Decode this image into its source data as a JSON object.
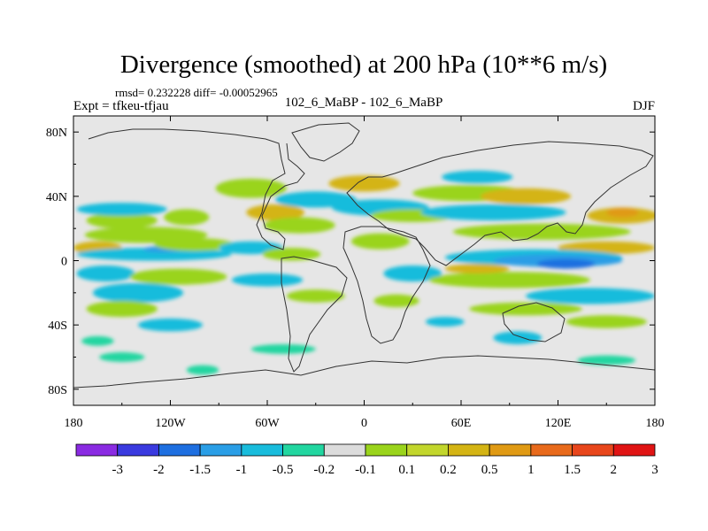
{
  "chart_data": {
    "type": "heatmap",
    "title": "Divergence (smoothed) at 200 hPa (10**6 m/s)",
    "stats": "rmsd= 0.232228 diff= -0.00052965",
    "experiment": "Expt = tfkeu-tfjau",
    "comparison": "102_6_MaBP - 102_6_MaBP",
    "season": "DJF",
    "x_ticks": [
      {
        "value": -180,
        "label": "180"
      },
      {
        "value": -120,
        "label": "120W"
      },
      {
        "value": -60,
        "label": "60W"
      },
      {
        "value": 0,
        "label": "0"
      },
      {
        "value": 60,
        "label": "60E"
      },
      {
        "value": 120,
        "label": "120E"
      },
      {
        "value": 180,
        "label": "180"
      }
    ],
    "y_ticks": [
      {
        "value": 80,
        "label": "80N"
      },
      {
        "value": 40,
        "label": "40N"
      },
      {
        "value": 0,
        "label": "0"
      },
      {
        "value": -40,
        "label": "40S"
      },
      {
        "value": -80,
        "label": "80S"
      }
    ],
    "xlim": [
      -180,
      180
    ],
    "ylim": [
      -90,
      90
    ],
    "colorbar": {
      "levels": [
        "-3",
        "-2",
        "-1.5",
        "-1",
        "-0.5",
        "-0.2",
        "-0.1",
        "0.1",
        "0.2",
        "0.5",
        "1",
        "1.5",
        "2",
        "3"
      ],
      "colors": [
        "#8a2be2",
        "#3a3adf",
        "#1e6fe0",
        "#2a9ee6",
        "#19bcdc",
        "#22d6a0",
        "#dcdcdc",
        "#9ad41c",
        "#c2d62c",
        "#d4b414",
        "#e09a14",
        "#e86a1c",
        "#e8461c",
        "#e01414"
      ]
    },
    "regions": [
      {
        "lon": -150,
        "lat": 25,
        "rx": 22,
        "ry": 5,
        "c": "#9ad41c"
      },
      {
        "lon": -110,
        "lat": 27,
        "rx": 14,
        "ry": 5,
        "c": "#9ad41c"
      },
      {
        "lon": -150,
        "lat": 32,
        "rx": 28,
        "ry": 4,
        "c": "#19bcdc"
      },
      {
        "lon": -135,
        "lat": 16,
        "rx": 38,
        "ry": 5,
        "c": "#9ad41c"
      },
      {
        "lon": -165,
        "lat": 8,
        "rx": 15,
        "ry": 4,
        "c": "#d4b414"
      },
      {
        "lon": -130,
        "lat": 4,
        "rx": 48,
        "ry": 4,
        "c": "#19bcdc"
      },
      {
        "lon": -125,
        "lat": 7,
        "rx": 12,
        "ry": 2,
        "c": "#2a9ee6"
      },
      {
        "lon": -105,
        "lat": 10,
        "rx": 25,
        "ry": 4,
        "c": "#9ad41c"
      },
      {
        "lon": -160,
        "lat": -8,
        "rx": 18,
        "ry": 5,
        "c": "#19bcdc"
      },
      {
        "lon": -115,
        "lat": -10,
        "rx": 30,
        "ry": 5,
        "c": "#9ad41c"
      },
      {
        "lon": -140,
        "lat": -20,
        "rx": 28,
        "ry": 6,
        "c": "#19bcdc"
      },
      {
        "lon": -150,
        "lat": -30,
        "rx": 22,
        "ry": 5,
        "c": "#9ad41c"
      },
      {
        "lon": -120,
        "lat": -40,
        "rx": 20,
        "ry": 4,
        "c": "#19bcdc"
      },
      {
        "lon": -165,
        "lat": -50,
        "rx": 10,
        "ry": 3,
        "c": "#22d6a0"
      },
      {
        "lon": -150,
        "lat": -60,
        "rx": 14,
        "ry": 3,
        "c": "#22d6a0"
      },
      {
        "lon": -100,
        "lat": -68,
        "rx": 10,
        "ry": 3,
        "c": "#22d6a0"
      },
      {
        "lon": -70,
        "lat": 45,
        "rx": 22,
        "ry": 6,
        "c": "#9ad41c"
      },
      {
        "lon": -55,
        "lat": 30,
        "rx": 18,
        "ry": 5,
        "c": "#d4b414"
      },
      {
        "lon": -30,
        "lat": 38,
        "rx": 25,
        "ry": 5,
        "c": "#19bcdc"
      },
      {
        "lon": -40,
        "lat": 22,
        "rx": 22,
        "ry": 5,
        "c": "#9ad41c"
      },
      {
        "lon": -70,
        "lat": 8,
        "rx": 20,
        "ry": 4,
        "c": "#19bcdc"
      },
      {
        "lon": -45,
        "lat": 4,
        "rx": 18,
        "ry": 4,
        "c": "#9ad41c"
      },
      {
        "lon": -60,
        "lat": -12,
        "rx": 22,
        "ry": 4,
        "c": "#19bcdc"
      },
      {
        "lon": -30,
        "lat": -22,
        "rx": 18,
        "ry": 4,
        "c": "#9ad41c"
      },
      {
        "lon": -50,
        "lat": -55,
        "rx": 20,
        "ry": 3,
        "c": "#22d6a0"
      },
      {
        "lon": 0,
        "lat": 48,
        "rx": 22,
        "ry": 5,
        "c": "#d4b414"
      },
      {
        "lon": 10,
        "lat": 33,
        "rx": 30,
        "ry": 5,
        "c": "#19bcdc"
      },
      {
        "lon": 30,
        "lat": 28,
        "rx": 26,
        "ry": 4,
        "c": "#9ad41c"
      },
      {
        "lon": 10,
        "lat": 12,
        "rx": 18,
        "ry": 5,
        "c": "#9ad41c"
      },
      {
        "lon": 30,
        "lat": -8,
        "rx": 18,
        "ry": 5,
        "c": "#19bcdc"
      },
      {
        "lon": 20,
        "lat": -25,
        "rx": 14,
        "ry": 4,
        "c": "#9ad41c"
      },
      {
        "lon": 50,
        "lat": -38,
        "rx": 12,
        "ry": 3,
        "c": "#19bcdc"
      },
      {
        "lon": 70,
        "lat": 52,
        "rx": 22,
        "ry": 4,
        "c": "#19bcdc"
      },
      {
        "lon": 65,
        "lat": 42,
        "rx": 35,
        "ry": 5,
        "c": "#9ad41c"
      },
      {
        "lon": 100,
        "lat": 40,
        "rx": 28,
        "ry": 5,
        "c": "#d4b414"
      },
      {
        "lon": 80,
        "lat": 30,
        "rx": 45,
        "ry": 5,
        "c": "#19bcdc"
      },
      {
        "lon": 110,
        "lat": 18,
        "rx": 55,
        "ry": 5,
        "c": "#9ad41c"
      },
      {
        "lon": 160,
        "lat": 28,
        "rx": 22,
        "ry": 5,
        "c": "#d4b414"
      },
      {
        "lon": 160,
        "lat": 30,
        "rx": 10,
        "ry": 3,
        "c": "#e09a14"
      },
      {
        "lon": 150,
        "lat": 8,
        "rx": 30,
        "ry": 4,
        "c": "#d4b414"
      },
      {
        "lon": 105,
        "lat": 2,
        "rx": 55,
        "ry": 5,
        "c": "#19bcdc"
      },
      {
        "lon": 120,
        "lat": 0,
        "rx": 40,
        "ry": 4,
        "c": "#2a9ee6"
      },
      {
        "lon": 125,
        "lat": -2,
        "rx": 18,
        "ry": 3,
        "c": "#1e6fe0"
      },
      {
        "lon": 90,
        "lat": -12,
        "rx": 50,
        "ry": 5,
        "c": "#9ad41c"
      },
      {
        "lon": 70,
        "lat": -5,
        "rx": 20,
        "ry": 3,
        "c": "#d4b414"
      },
      {
        "lon": 140,
        "lat": -22,
        "rx": 40,
        "ry": 5,
        "c": "#19bcdc"
      },
      {
        "lon": 100,
        "lat": -30,
        "rx": 35,
        "ry": 4,
        "c": "#9ad41c"
      },
      {
        "lon": 150,
        "lat": -38,
        "rx": 25,
        "ry": 4,
        "c": "#9ad41c"
      },
      {
        "lon": 95,
        "lat": -48,
        "rx": 15,
        "ry": 4,
        "c": "#19bcdc"
      },
      {
        "lon": 150,
        "lat": -62,
        "rx": 18,
        "ry": 3,
        "c": "#22d6a0"
      }
    ]
  }
}
